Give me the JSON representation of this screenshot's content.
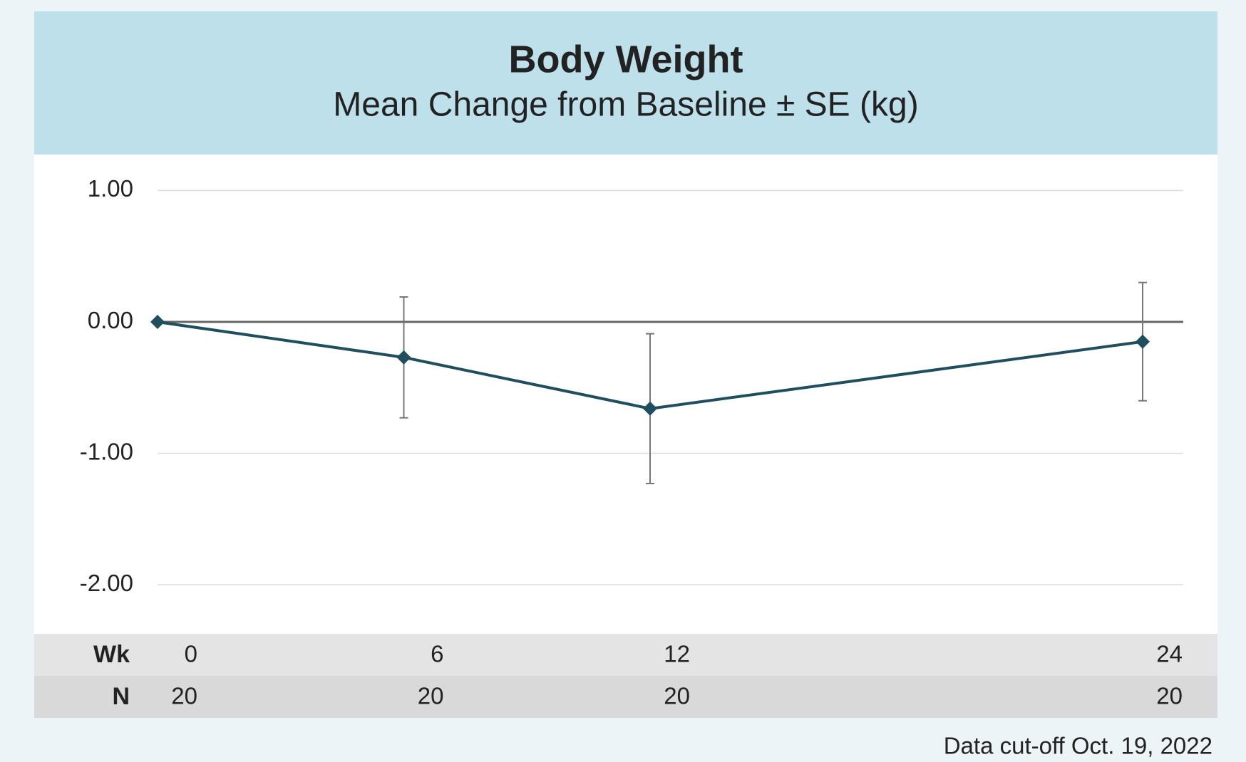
{
  "chart_data": {
    "type": "line",
    "title": "Body Weight",
    "subtitle": "Mean Change from Baseline ± SE (kg)",
    "x": [
      0,
      6,
      12,
      24
    ],
    "xlim": [
      0,
      24
    ],
    "series": [
      {
        "color": "#1f4e5f",
        "values": [
          0,
          -0.27,
          -0.66,
          -0.15
        ],
        "errors": [
          0,
          0.46,
          0.57,
          0.45
        ]
      }
    ],
    "ylim": [
      -2.3,
      1.25
    ],
    "yticks": [
      {
        "value": 1,
        "label": "1.00"
      },
      {
        "value": 0,
        "label": "0.00"
      },
      {
        "value": -1,
        "label": "-1.00"
      },
      {
        "value": -2,
        "label": "-2.00"
      }
    ],
    "grid": true,
    "x_row_label": "Wk",
    "n_label": "N",
    "n": [
      20,
      20,
      20,
      20
    ],
    "footnote": "Data cut-off Oct. 19, 2022"
  }
}
